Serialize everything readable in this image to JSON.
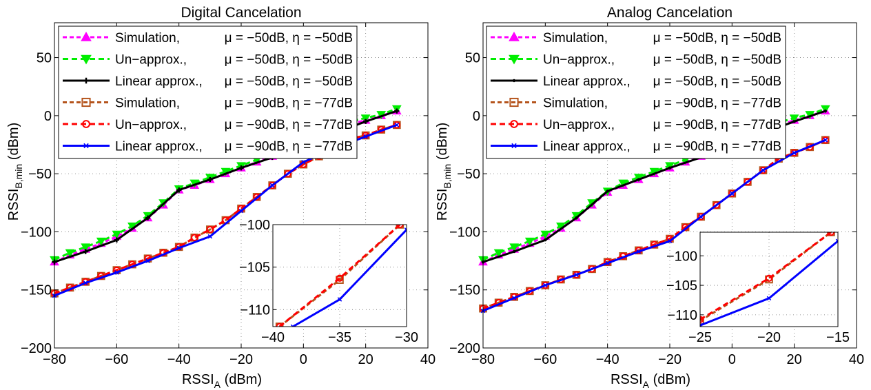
{
  "chart_data": [
    {
      "type": "line",
      "title": "Digital Cancelation",
      "xlabel": "RSSI",
      "xlabel_sub": "A",
      "xlabel_unit": " (dBm)",
      "ylabel": "RSSI",
      "ylabel_sub": "B,min",
      "ylabel_unit": " (dBm)",
      "xlim": [
        -80,
        40
      ],
      "ylim": [
        -200,
        80
      ],
      "xticks": [
        -80,
        -60,
        -40,
        -20,
        0,
        20,
        40
      ],
      "yticks": [
        -200,
        -150,
        -100,
        -50,
        0,
        50
      ],
      "grid": true,
      "legend_position": "top-left",
      "series": [
        {
          "name": "Simulation,",
          "params": "μ = −50dB, η = −50dB",
          "color": "#ff00ff",
          "dash": "6,4",
          "marker": "triangle-up",
          "x": [
            -80,
            -75,
            -70,
            -65,
            -60,
            -55,
            -50,
            -45,
            -40,
            -35,
            -30,
            -25,
            -20,
            -15,
            -10,
            -5,
            0,
            5,
            10,
            15,
            20,
            25,
            30
          ],
          "y": [
            -126,
            -120,
            -115,
            -110,
            -104,
            -97,
            -88,
            -77,
            -64,
            -60,
            -55,
            -50,
            -45,
            -40,
            -35,
            -30,
            -24,
            -19,
            -15,
            -7,
            -4,
            0,
            4
          ]
        },
        {
          "name": "Un−approx.,",
          "params": "μ = −50dB, η = −50dB",
          "color": "#00ee00",
          "dash": "8,5",
          "marker": "triangle-down",
          "x": [
            -80,
            -75,
            -70,
            -65,
            -60,
            -55,
            -50,
            -45,
            -40,
            -35,
            -30,
            -25,
            -20,
            -15,
            -10,
            -5,
            0,
            5,
            10,
            15,
            20,
            25,
            30
          ],
          "y": [
            -124,
            -118,
            -113,
            -108,
            -102,
            -95,
            -86,
            -75,
            -63,
            -58,
            -53,
            -48,
            -43,
            -38,
            -33,
            -28,
            -22,
            -18,
            -13,
            -5,
            -2,
            1,
            6
          ]
        },
        {
          "name": "Linear approx.,",
          "params": "μ = −50dB, η = −50dB",
          "color": "#000000",
          "dash": "",
          "marker": "plus",
          "x": [
            -80,
            -70,
            -60,
            -50,
            -40,
            -30,
            -20,
            -10,
            0,
            10,
            20,
            30
          ],
          "y": [
            -126,
            -117,
            -107,
            -88,
            -64,
            -55,
            -45,
            -36,
            -25,
            -15,
            -5,
            4
          ]
        },
        {
          "name": "Simulation,",
          "params": "μ = −90dB, η = −77dB",
          "color": "#b5541c",
          "dash": "6,4",
          "marker": "square",
          "x": [
            -80,
            -75,
            -70,
            -65,
            -60,
            -55,
            -50,
            -45,
            -40,
            -35,
            -30,
            -25,
            -20,
            -15,
            -10,
            -5,
            0,
            5,
            10,
            15,
            20,
            25,
            30
          ],
          "y": [
            -153,
            -148,
            -143,
            -138,
            -133,
            -128,
            -123,
            -118,
            -113,
            -105,
            -98,
            -90,
            -80,
            -70,
            -60,
            -50,
            -42,
            -35,
            -27,
            -20,
            -17,
            -12,
            -8
          ]
        },
        {
          "name": "Un−approx.,",
          "params": "μ = −90dB, η = −77dB",
          "color": "#ff0000",
          "dash": "8,5",
          "marker": "circle",
          "x": [
            -80,
            -75,
            -70,
            -65,
            -60,
            -55,
            -50,
            -45,
            -40,
            -35,
            -30,
            -25,
            -20,
            -15,
            -10,
            -5,
            0,
            5,
            10,
            15,
            20,
            25,
            30
          ],
          "y": [
            -153,
            -148,
            -143,
            -138,
            -133,
            -128,
            -123,
            -118,
            -113,
            -105,
            -98,
            -90,
            -80,
            -70,
            -60,
            -50,
            -42,
            -35,
            -27,
            -20,
            -17,
            -12,
            -8
          ]
        },
        {
          "name": "Linear approx.,",
          "params": "μ = −90dB, η = −77dB",
          "color": "#0000ff",
          "dash": "",
          "marker": "x",
          "x": [
            -80,
            -70,
            -60,
            -50,
            -40,
            -30,
            -20,
            -10,
            0,
            10,
            20,
            30
          ],
          "y": [
            -155,
            -144,
            -135,
            -125,
            -114,
            -104,
            -82,
            -60,
            -40,
            -28,
            -18,
            -8
          ]
        }
      ],
      "inset": {
        "xlim": [
          -40,
          -30
        ],
        "ylim": [
          -112,
          -100
        ],
        "xticks": [
          -40,
          -35,
          -30
        ],
        "yticks": [
          -110,
          -105,
          -100
        ],
        "series": [
          {
            "color": "#b5541c",
            "dash": "6,4",
            "marker": "square",
            "x": [
              -39.5,
              -35,
              -30.5
            ],
            "y": [
              -112,
              -106.5,
              -100
            ]
          },
          {
            "color": "#ff0000",
            "dash": "8,5",
            "marker": "circle",
            "x": [
              -39.5,
              -35,
              -30.5
            ],
            "y": [
              -112,
              -106.3,
              -100
            ]
          },
          {
            "color": "#0000ff",
            "dash": "",
            "marker": "x",
            "x": [
              -38.5,
              -35,
              -30
            ],
            "y": [
              -112,
              -108.8,
              -100.6
            ]
          }
        ]
      }
    },
    {
      "type": "line",
      "title": "Analog Cancelation",
      "xlabel": "RSSI",
      "xlabel_sub": "A",
      "xlabel_unit": " (dBm)",
      "ylabel": "RSSI",
      "ylabel_sub": "B,min",
      "ylabel_unit": " (dBm)",
      "xlim": [
        -80,
        40
      ],
      "ylim": [
        -200,
        80
      ],
      "xticks": [
        -80,
        -60,
        -40,
        -20,
        0,
        20,
        40
      ],
      "yticks": [
        -200,
        -150,
        -100,
        -50,
        0,
        50
      ],
      "grid": true,
      "legend_position": "top-left",
      "series": [
        {
          "name": "Simulation,",
          "params": "μ = −50dB, η = −50dB",
          "color": "#ff00ff",
          "dash": "6,4",
          "marker": "triangle-up",
          "x": [
            -80,
            -75,
            -70,
            -65,
            -60,
            -55,
            -50,
            -45,
            -40,
            -35,
            -30,
            -25,
            -20,
            -15,
            -10,
            -5,
            0,
            5,
            10,
            15,
            20,
            25,
            30
          ],
          "y": [
            -126,
            -120,
            -115,
            -110,
            -104,
            -97,
            -88,
            -77,
            -66,
            -60,
            -55,
            -50,
            -45,
            -40,
            -35,
            -30,
            -24,
            -19,
            -14,
            -8,
            -4,
            0,
            4
          ]
        },
        {
          "name": "Un−approx.,",
          "params": "μ = −50dB, η = −50dB",
          "color": "#00ee00",
          "dash": "8,5",
          "marker": "triangle-down",
          "x": [
            -80,
            -75,
            -70,
            -65,
            -60,
            -55,
            -50,
            -45,
            -40,
            -35,
            -30,
            -25,
            -20,
            -15,
            -10,
            -5,
            0,
            5,
            10,
            15,
            20,
            25,
            30
          ],
          "y": [
            -124,
            -118,
            -113,
            -108,
            -102,
            -95,
            -86,
            -75,
            -65,
            -58,
            -53,
            -48,
            -43,
            -38,
            -33,
            -28,
            -22,
            -17,
            -12,
            -6,
            -2,
            1,
            6
          ]
        },
        {
          "name": "Linear approx.,",
          "params": "μ = −50dB, η = −50dB",
          "color": "#000000",
          "dash": "",
          "marker": "dot",
          "x": [
            -80,
            -70,
            -60,
            -50,
            -40,
            -30,
            -20,
            -10,
            0,
            10,
            20,
            30
          ],
          "y": [
            -126,
            -117,
            -107,
            -88,
            -65,
            -55,
            -45,
            -36,
            -25,
            -15,
            -5,
            4
          ]
        },
        {
          "name": "Simulation,",
          "params": "μ = −90dB, η = −77dB",
          "color": "#b5541c",
          "dash": "6,4",
          "marker": "square",
          "x": [
            -80,
            -75,
            -70,
            -65,
            -60,
            -55,
            -50,
            -45,
            -40,
            -35,
            -30,
            -25,
            -20,
            -15,
            -10,
            -5,
            0,
            5,
            10,
            15,
            20,
            25,
            30
          ],
          "y": [
            -166,
            -161,
            -156,
            -151,
            -146,
            -141,
            -137,
            -132,
            -126,
            -121,
            -116,
            -111,
            -106,
            -96,
            -87,
            -77,
            -67,
            -57,
            -47,
            -37,
            -32,
            -27,
            -21
          ]
        },
        {
          "name": "Un−approx.,",
          "params": "μ = −90dB, η = −77dB",
          "color": "#ff0000",
          "dash": "8,5",
          "marker": "circle",
          "x": [
            -80,
            -75,
            -70,
            -65,
            -60,
            -55,
            -50,
            -45,
            -40,
            -35,
            -30,
            -25,
            -20,
            -15,
            -10,
            -5,
            0,
            5,
            10,
            15,
            20,
            25,
            30
          ],
          "y": [
            -166,
            -161,
            -156,
            -151,
            -146,
            -141,
            -137,
            -132,
            -126,
            -121,
            -116,
            -111,
            -106,
            -96,
            -87,
            -77,
            -67,
            -57,
            -47,
            -37,
            -32,
            -27,
            -21
          ]
        },
        {
          "name": "Linear approx.,",
          "params": "μ = −90dB, η = −77dB",
          "color": "#0000ff",
          "dash": "",
          "marker": "x",
          "x": [
            -80,
            -70,
            -60,
            -50,
            -40,
            -30,
            -20,
            -10,
            0,
            10,
            20,
            30
          ],
          "y": [
            -168,
            -157,
            -146,
            -137,
            -127,
            -117,
            -108,
            -87,
            -67,
            -47,
            -32,
            -21
          ]
        }
      ],
      "inset": {
        "xlim": [
          -25,
          -15
        ],
        "ylim": [
          -112,
          -96
        ],
        "xticks": [
          -25,
          -20,
          -15
        ],
        "yticks": [
          -110,
          -105,
          -100
        ],
        "series": [
          {
            "color": "#b5541c",
            "dash": "6,4",
            "marker": "square",
            "x": [
              -25,
              -20,
              -15.5
            ],
            "y": [
              -111,
              -104,
              -96
            ]
          },
          {
            "color": "#ff0000",
            "dash": "8,5",
            "marker": "circle",
            "x": [
              -25,
              -20,
              -15.5
            ],
            "y": [
              -110.8,
              -103.8,
              -96
            ]
          },
          {
            "color": "#0000ff",
            "dash": "",
            "marker": "x",
            "x": [
              -25,
              -20,
              -15
            ],
            "y": [
              -111.8,
              -107.2,
              -97.5
            ]
          }
        ]
      }
    }
  ]
}
